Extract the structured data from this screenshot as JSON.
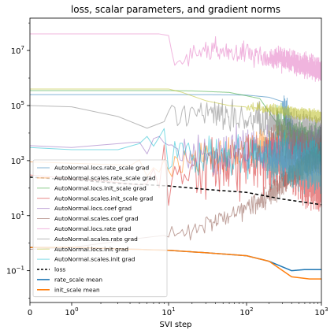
{
  "chart_data": {
    "type": "line",
    "title": "loss, scalar parameters, and gradient norms",
    "xlabel": "SVI step",
    "ylabel": "",
    "xscale": "symlog",
    "yscale": "log",
    "xlim": [
      0,
      1000
    ],
    "ylim": [
      0.007,
      150000000
    ],
    "grid": false,
    "legend_position": "lower-left",
    "x_ticks": [
      {
        "value": 0,
        "label": "0"
      },
      {
        "value": 1,
        "label": "10",
        "exp": "0"
      },
      {
        "value": 10,
        "label": "10",
        "exp": "1"
      },
      {
        "value": 100,
        "label": "10",
        "exp": "2"
      },
      {
        "value": 1000,
        "label": "10",
        "exp": "3"
      }
    ],
    "y_ticks": [
      {
        "value": 0.1,
        "label": "10",
        "exp": "−1"
      },
      {
        "value": 10,
        "label": "10",
        "exp": "1"
      },
      {
        "value": 1000,
        "label": "10",
        "exp": "3"
      },
      {
        "value": 100000,
        "label": "10",
        "exp": "5"
      },
      {
        "value": 10000000,
        "label": "10",
        "exp": "7"
      }
    ],
    "series": [
      {
        "name": "AutoNormal.locs.rate_scale grad",
        "color": "#1f77b4",
        "alpha": 0.55,
        "width": 1,
        "dash": "",
        "points": [
          [
            0,
            250000
          ],
          [
            1,
            250000
          ],
          [
            10,
            250000
          ],
          [
            30,
            250000
          ],
          [
            100,
            240000
          ],
          [
            200,
            200000
          ],
          [
            300,
            140000
          ],
          [
            450,
            4500
          ],
          [
            700,
            3500
          ],
          [
            1000,
            3000
          ]
        ],
        "noise": {
          "start": 300,
          "amp": 0.8
        }
      },
      {
        "name": "AutoNormal.scales.rate_scale grad",
        "color": "#ff7f0e",
        "alpha": 0.55,
        "width": 1,
        "dash": "",
        "points": [
          [
            0,
            900
          ],
          [
            1,
            800
          ],
          [
            3,
            700
          ],
          [
            6,
            600
          ],
          [
            10,
            500
          ],
          [
            30,
            1200
          ],
          [
            100,
            3000
          ],
          [
            300,
            5000
          ],
          [
            1000,
            1500
          ]
        ],
        "noise": {
          "start": 5,
          "amp": 0.9
        }
      },
      {
        "name": "AutoNormal.locs.init_scale grad",
        "color": "#2ca02c",
        "alpha": 0.55,
        "width": 1,
        "dash": "",
        "points": [
          [
            0,
            350000
          ],
          [
            1,
            350000
          ],
          [
            10,
            350000
          ],
          [
            20,
            340000
          ],
          [
            60,
            300000
          ],
          [
            150,
            180000
          ],
          [
            300,
            12000
          ],
          [
            500,
            5000
          ],
          [
            1000,
            4000
          ]
        ],
        "noise": {
          "start": 250,
          "amp": 1.0
        }
      },
      {
        "name": "AutoNormal.scales.init_scale grad",
        "color": "#d62728",
        "alpha": 0.55,
        "width": 1,
        "dash": "",
        "points": [
          [
            0,
            300
          ],
          [
            1,
            220
          ],
          [
            3,
            160
          ],
          [
            6,
            120
          ],
          [
            10,
            150
          ],
          [
            20,
            250
          ],
          [
            50,
            600
          ],
          [
            100,
            1000
          ],
          [
            300,
            800
          ],
          [
            1000,
            200
          ]
        ],
        "noise": {
          "start": 6,
          "amp": 1.6
        }
      },
      {
        "name": "AutoNormal.locs.coef grad",
        "color": "#9467bd",
        "alpha": 0.55,
        "width": 1,
        "dash": "",
        "points": [
          [
            0,
            3500
          ],
          [
            1,
            3000
          ],
          [
            4,
            4500
          ],
          [
            7,
            5000
          ],
          [
            10,
            3000
          ],
          [
            30,
            2000
          ],
          [
            100,
            3000
          ],
          [
            300,
            2000
          ],
          [
            1000,
            2000
          ]
        ],
        "noise": {
          "start": 6,
          "amp": 1.2
        }
      },
      {
        "name": "AutoNormal.scales.coef grad",
        "color": "#8c564b",
        "alpha": 0.55,
        "width": 1,
        "dash": "",
        "points": [
          [
            0,
            0.6
          ],
          [
            1,
            0.7
          ],
          [
            5,
            1.5
          ],
          [
            10,
            2
          ],
          [
            30,
            4
          ],
          [
            100,
            20
          ],
          [
            200,
            50
          ],
          [
            400,
            300
          ],
          [
            1000,
            2000
          ]
        ],
        "noise": {
          "start": 10,
          "amp": 0.6
        }
      },
      {
        "name": "AutoNormal.locs.rate grad",
        "color": "#e377c2",
        "alpha": 0.55,
        "width": 1,
        "dash": "",
        "points": [
          [
            0,
            40000000
          ],
          [
            1,
            40000000
          ],
          [
            8,
            40000000
          ],
          [
            10,
            35000000
          ],
          [
            12,
            2500000
          ],
          [
            20,
            8000000
          ],
          [
            50,
            10000000
          ],
          [
            100,
            8000000
          ],
          [
            300,
            5000000
          ],
          [
            1000,
            2000000
          ]
        ],
        "noise": {
          "start": 12,
          "amp": 0.6
        }
      },
      {
        "name": "AutoNormal.scales.rate grad",
        "color": "#7f7f7f",
        "alpha": 0.55,
        "width": 1,
        "dash": "",
        "points": [
          [
            0,
            100000
          ],
          [
            1,
            90000
          ],
          [
            3,
            40000
          ],
          [
            6,
            15000
          ],
          [
            10,
            30000
          ],
          [
            20,
            50000
          ],
          [
            50,
            40000
          ],
          [
            100,
            30000
          ],
          [
            300,
            15000
          ],
          [
            1000,
            10000
          ]
        ],
        "noise": {
          "start": 10,
          "amp": 0.9
        }
      },
      {
        "name": "AutoNormal.locs.init grad",
        "color": "#bcbd22",
        "alpha": 0.55,
        "width": 1,
        "dash": "",
        "points": [
          [
            0,
            400000
          ],
          [
            1,
            400000
          ],
          [
            10,
            400000
          ],
          [
            15,
            300000
          ],
          [
            30,
            150000
          ],
          [
            60,
            100000
          ],
          [
            150,
            80000
          ],
          [
            400,
            60000
          ],
          [
            1000,
            40000
          ]
        ],
        "noise": {
          "start": 100,
          "amp": 0.3
        }
      },
      {
        "name": "AutoNormal.scales.init grad",
        "color": "#17becf",
        "alpha": 0.55,
        "width": 1,
        "dash": "",
        "points": [
          [
            0,
            3000
          ],
          [
            1,
            2500
          ],
          [
            3,
            2500
          ],
          [
            6,
            5000
          ],
          [
            10,
            1500
          ],
          [
            30,
            1500
          ],
          [
            100,
            1500
          ],
          [
            300,
            1000
          ],
          [
            1000,
            500
          ]
        ],
        "noise": {
          "start": 6,
          "amp": 1.2
        }
      },
      {
        "name": "loss",
        "color": "#000000",
        "alpha": 1,
        "width": 1.5,
        "dash": "4,3",
        "points": [
          [
            0,
            250
          ],
          [
            1,
            200
          ],
          [
            3,
            150
          ],
          [
            10,
            120
          ],
          [
            30,
            90
          ],
          [
            100,
            70
          ],
          [
            300,
            40
          ],
          [
            1000,
            25
          ]
        ],
        "noise": null
      },
      {
        "name": "rate_scale mean",
        "color": "#1f77b4",
        "alpha": 1,
        "width": 1.5,
        "dash": "",
        "points": [
          [
            0,
            0.7
          ],
          [
            1,
            0.7
          ],
          [
            10,
            0.55
          ],
          [
            30,
            0.45
          ],
          [
            100,
            0.35
          ],
          [
            200,
            0.22
          ],
          [
            400,
            0.1
          ],
          [
            600,
            0.11
          ],
          [
            1000,
            0.11
          ]
        ],
        "noise": null
      },
      {
        "name": "init_scale mean",
        "color": "#ff7f0e",
        "alpha": 1,
        "width": 1.5,
        "dash": "",
        "points": [
          [
            0,
            0.7
          ],
          [
            1,
            0.7
          ],
          [
            10,
            0.55
          ],
          [
            30,
            0.45
          ],
          [
            100,
            0.35
          ],
          [
            200,
            0.22
          ],
          [
            400,
            0.06
          ],
          [
            700,
            0.05
          ],
          [
            1000,
            0.05
          ]
        ],
        "noise": null
      }
    ]
  }
}
